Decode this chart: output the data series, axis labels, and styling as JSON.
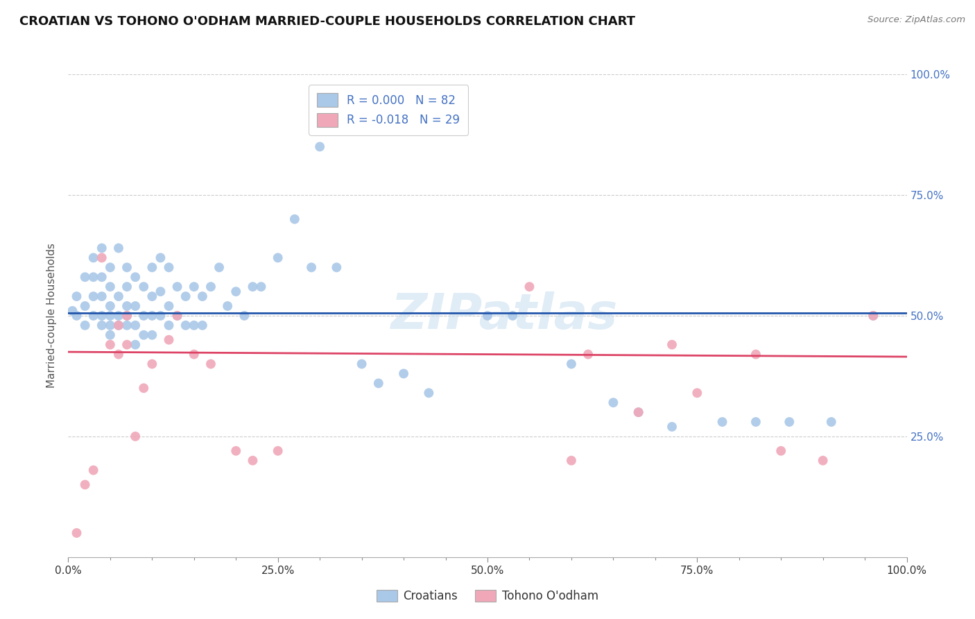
{
  "title": "CROATIAN VS TOHONO O'ODHAM MARRIED-COUPLE HOUSEHOLDS CORRELATION CHART",
  "source_text": "Source: ZipAtlas.com",
  "ylabel": "Married-couple Households",
  "xlim": [
    0,
    1.0
  ],
  "ylim": [
    0,
    1.0
  ],
  "xtick_labels": [
    "0.0%",
    "",
    "",
    "",
    "",
    "25.0%",
    "",
    "",
    "",
    "",
    "50.0%",
    "",
    "",
    "",
    "",
    "75.0%",
    "",
    "",
    "",
    "",
    "100.0%"
  ],
  "xtick_vals": [
    0.0,
    0.05,
    0.1,
    0.15,
    0.2,
    0.25,
    0.3,
    0.35,
    0.4,
    0.45,
    0.5,
    0.55,
    0.6,
    0.65,
    0.7,
    0.75,
    0.8,
    0.85,
    0.9,
    0.95,
    1.0
  ],
  "ytick_vals": [
    0.25,
    0.5,
    0.75,
    1.0
  ],
  "right_ytick_labels": [
    "25.0%",
    "50.0%",
    "75.0%",
    "100.0%"
  ],
  "grid_color": "#cccccc",
  "background_color": "#ffffff",
  "watermark_text": "ZIPatlas",
  "legend_r_blue": "R = 0.000",
  "legend_n_blue": "N = 82",
  "legend_r_pink": "R = -0.018",
  "legend_n_pink": "N = 29",
  "blue_color": "#aac8e8",
  "pink_color": "#f0a8b8",
  "blue_line_color": "#2255aa",
  "pink_line_color": "#dd4466",
  "legend_label_blue": "Croatians",
  "legend_label_pink": "Tohono O'odham",
  "blue_trend_x": [
    0.0,
    1.0
  ],
  "blue_trend_y": [
    0.505,
    0.505
  ],
  "pink_trend_x": [
    0.0,
    1.0
  ],
  "pink_trend_y": [
    0.425,
    0.415
  ],
  "blue_scatter_x": [
    0.005,
    0.01,
    0.01,
    0.02,
    0.02,
    0.02,
    0.03,
    0.03,
    0.03,
    0.03,
    0.04,
    0.04,
    0.04,
    0.04,
    0.04,
    0.05,
    0.05,
    0.05,
    0.05,
    0.05,
    0.05,
    0.06,
    0.06,
    0.06,
    0.06,
    0.07,
    0.07,
    0.07,
    0.07,
    0.07,
    0.08,
    0.08,
    0.08,
    0.08,
    0.09,
    0.09,
    0.09,
    0.1,
    0.1,
    0.1,
    0.1,
    0.11,
    0.11,
    0.11,
    0.12,
    0.12,
    0.12,
    0.13,
    0.13,
    0.14,
    0.14,
    0.15,
    0.15,
    0.16,
    0.16,
    0.17,
    0.18,
    0.19,
    0.2,
    0.21,
    0.22,
    0.23,
    0.25,
    0.27,
    0.29,
    0.3,
    0.32,
    0.35,
    0.37,
    0.4,
    0.43,
    0.5,
    0.53,
    0.6,
    0.65,
    0.68,
    0.72,
    0.78,
    0.82,
    0.86,
    0.91,
    0.96
  ],
  "blue_scatter_y": [
    0.51,
    0.5,
    0.54,
    0.48,
    0.52,
    0.58,
    0.5,
    0.54,
    0.58,
    0.62,
    0.48,
    0.5,
    0.54,
    0.58,
    0.64,
    0.46,
    0.48,
    0.5,
    0.52,
    0.56,
    0.6,
    0.48,
    0.5,
    0.54,
    0.64,
    0.48,
    0.5,
    0.52,
    0.56,
    0.6,
    0.44,
    0.48,
    0.52,
    0.58,
    0.46,
    0.5,
    0.56,
    0.46,
    0.5,
    0.54,
    0.6,
    0.5,
    0.55,
    0.62,
    0.48,
    0.52,
    0.6,
    0.5,
    0.56,
    0.48,
    0.54,
    0.48,
    0.56,
    0.48,
    0.54,
    0.56,
    0.6,
    0.52,
    0.55,
    0.5,
    0.56,
    0.56,
    0.62,
    0.7,
    0.6,
    0.85,
    0.6,
    0.4,
    0.36,
    0.38,
    0.34,
    0.5,
    0.5,
    0.4,
    0.32,
    0.3,
    0.27,
    0.28,
    0.28,
    0.28,
    0.28,
    0.5
  ],
  "pink_scatter_x": [
    0.01,
    0.02,
    0.03,
    0.04,
    0.05,
    0.06,
    0.06,
    0.07,
    0.07,
    0.08,
    0.09,
    0.1,
    0.12,
    0.13,
    0.15,
    0.17,
    0.2,
    0.22,
    0.25,
    0.55,
    0.6,
    0.62,
    0.68,
    0.72,
    0.75,
    0.82,
    0.85,
    0.9,
    0.96
  ],
  "pink_scatter_y": [
    0.05,
    0.15,
    0.18,
    0.62,
    0.44,
    0.48,
    0.42,
    0.5,
    0.44,
    0.25,
    0.35,
    0.4,
    0.45,
    0.5,
    0.42,
    0.4,
    0.22,
    0.2,
    0.22,
    0.56,
    0.2,
    0.42,
    0.3,
    0.44,
    0.34,
    0.42,
    0.22,
    0.2,
    0.5
  ]
}
